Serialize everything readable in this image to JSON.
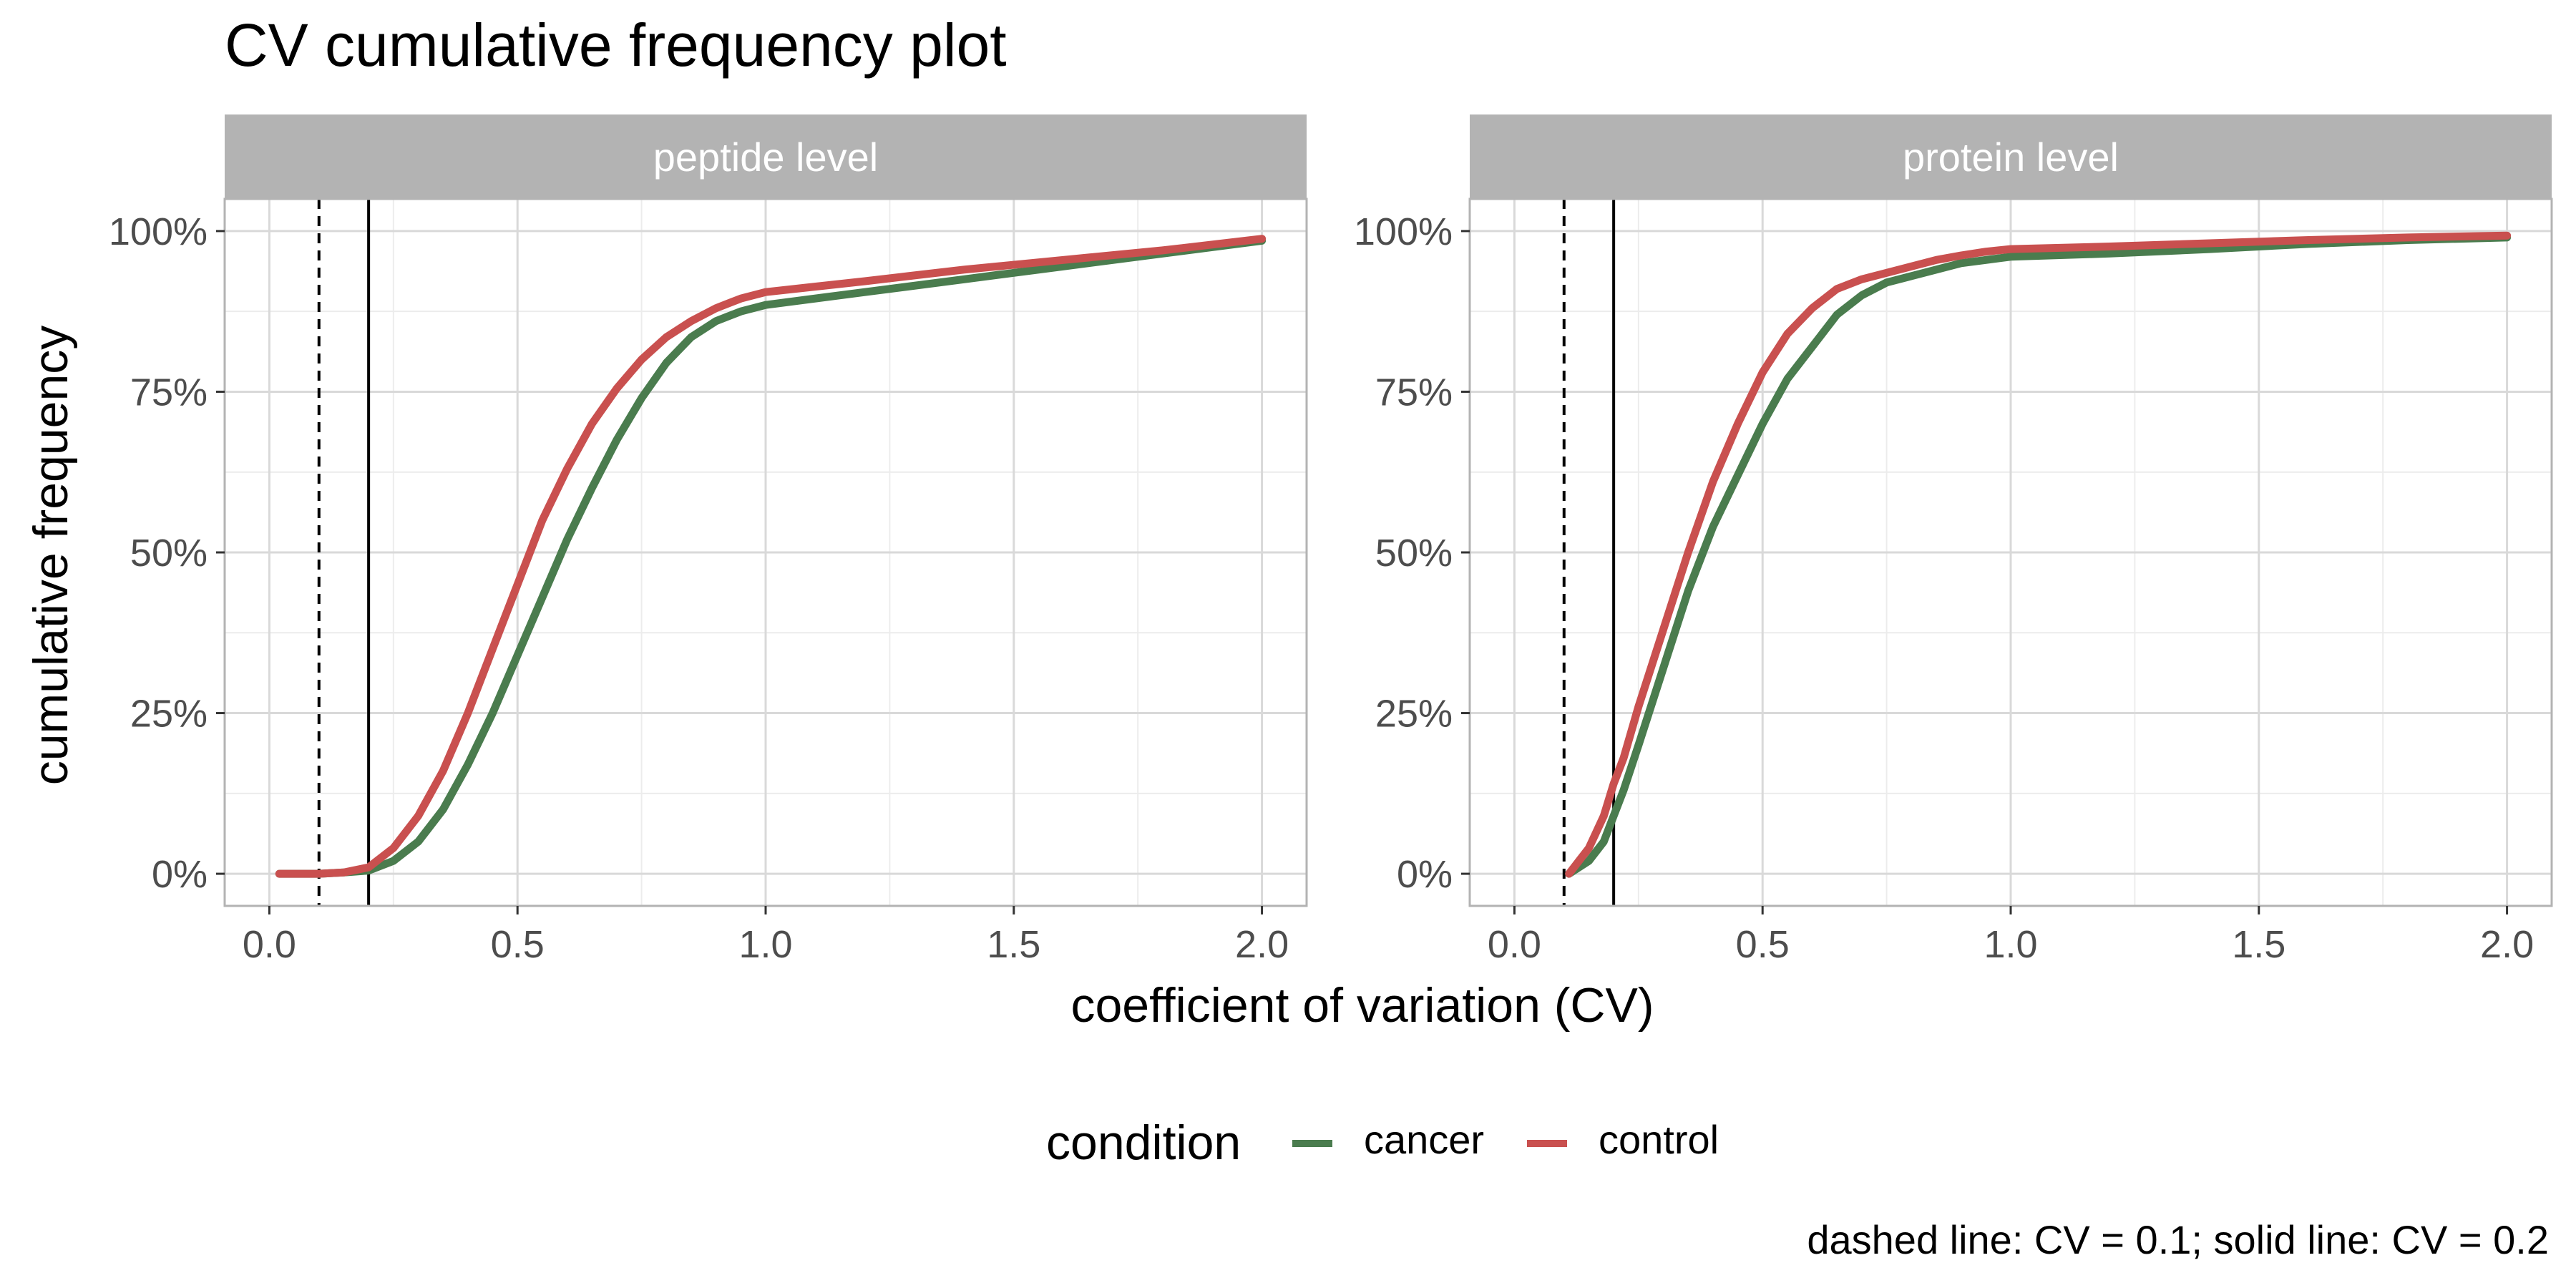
{
  "title": "CV cumulative frequency plot",
  "xlabel": "coefficient of variation (CV)",
  "ylabel": "cumulative frequency",
  "caption": "dashed line: CV = 0.1; solid line: CV = 0.2",
  "legend": {
    "title": "condition",
    "items": [
      {
        "label": "cancer",
        "color": "#4a7c4e"
      },
      {
        "label": "control",
        "color": "#c9504f"
      }
    ]
  },
  "colors": {
    "strip": "#b3b3b3",
    "strip_text": "#ffffff",
    "grid_major": "#d9d9d9",
    "grid_minor": "#ececec",
    "panel_border": "#b3b3b3",
    "axis_text": "#4d4d4d"
  },
  "chart_data": {
    "type": "line",
    "facet_by": "level",
    "xlim": [
      -0.09,
      2.09
    ],
    "ylim": [
      -0.05,
      1.05
    ],
    "x_ticks": [
      0.0,
      0.5,
      1.0,
      1.5,
      2.0
    ],
    "x_tick_labels": [
      "0.0",
      "0.5",
      "1.0",
      "1.5",
      "2.0"
    ],
    "y_ticks": [
      0,
      0.25,
      0.5,
      0.75,
      1.0
    ],
    "y_tick_labels": [
      "0%",
      "25%",
      "50%",
      "75%",
      "100%"
    ],
    "reference_lines": [
      {
        "x": 0.1,
        "style": "dashed"
      },
      {
        "x": 0.2,
        "style": "solid"
      }
    ],
    "panels": [
      {
        "label": "peptide level",
        "series": [
          {
            "name": "cancer",
            "x": [
              0.02,
              0.1,
              0.15,
              0.2,
              0.25,
              0.3,
              0.35,
              0.4,
              0.45,
              0.5,
              0.55,
              0.6,
              0.65,
              0.7,
              0.75,
              0.8,
              0.85,
              0.9,
              0.95,
              1.0,
              1.2,
              1.4,
              1.6,
              1.8,
              2.0
            ],
            "y": [
              0.0,
              0.0,
              0.002,
              0.005,
              0.02,
              0.05,
              0.1,
              0.17,
              0.25,
              0.34,
              0.43,
              0.52,
              0.6,
              0.675,
              0.74,
              0.795,
              0.835,
              0.86,
              0.875,
              0.885,
              0.905,
              0.925,
              0.945,
              0.965,
              0.985
            ]
          },
          {
            "name": "control",
            "x": [
              0.02,
              0.1,
              0.15,
              0.2,
              0.25,
              0.3,
              0.35,
              0.4,
              0.45,
              0.5,
              0.55,
              0.6,
              0.65,
              0.7,
              0.75,
              0.8,
              0.85,
              0.9,
              0.95,
              1.0,
              1.2,
              1.4,
              1.6,
              1.8,
              2.0
            ],
            "y": [
              0.0,
              0.0,
              0.002,
              0.01,
              0.04,
              0.09,
              0.16,
              0.25,
              0.35,
              0.45,
              0.55,
              0.63,
              0.7,
              0.755,
              0.8,
              0.835,
              0.86,
              0.88,
              0.895,
              0.905,
              0.922,
              0.94,
              0.955,
              0.97,
              0.988
            ]
          }
        ]
      },
      {
        "label": "protein level",
        "series": [
          {
            "name": "cancer",
            "x": [
              0.11,
              0.13,
              0.15,
              0.18,
              0.2,
              0.22,
              0.25,
              0.3,
              0.35,
              0.4,
              0.45,
              0.5,
              0.55,
              0.6,
              0.65,
              0.7,
              0.75,
              0.8,
              0.85,
              0.9,
              0.95,
              1.0,
              1.2,
              1.4,
              1.6,
              1.8,
              2.0
            ],
            "y": [
              0.0,
              0.01,
              0.02,
              0.05,
              0.09,
              0.13,
              0.2,
              0.32,
              0.44,
              0.54,
              0.62,
              0.7,
              0.77,
              0.82,
              0.87,
              0.9,
              0.92,
              0.93,
              0.94,
              0.95,
              0.955,
              0.96,
              0.965,
              0.972,
              0.98,
              0.986,
              0.99
            ]
          },
          {
            "name": "control",
            "x": [
              0.11,
              0.13,
              0.15,
              0.18,
              0.2,
              0.22,
              0.25,
              0.3,
              0.35,
              0.4,
              0.45,
              0.5,
              0.55,
              0.6,
              0.65,
              0.7,
              0.75,
              0.8,
              0.85,
              0.9,
              0.95,
              1.0,
              1.2,
              1.4,
              1.6,
              1.8,
              2.0
            ],
            "y": [
              0.0,
              0.02,
              0.04,
              0.09,
              0.14,
              0.18,
              0.26,
              0.38,
              0.5,
              0.61,
              0.7,
              0.78,
              0.84,
              0.88,
              0.91,
              0.925,
              0.935,
              0.945,
              0.955,
              0.962,
              0.968,
              0.972,
              0.976,
              0.981,
              0.986,
              0.99,
              0.993
            ]
          }
        ]
      }
    ]
  }
}
